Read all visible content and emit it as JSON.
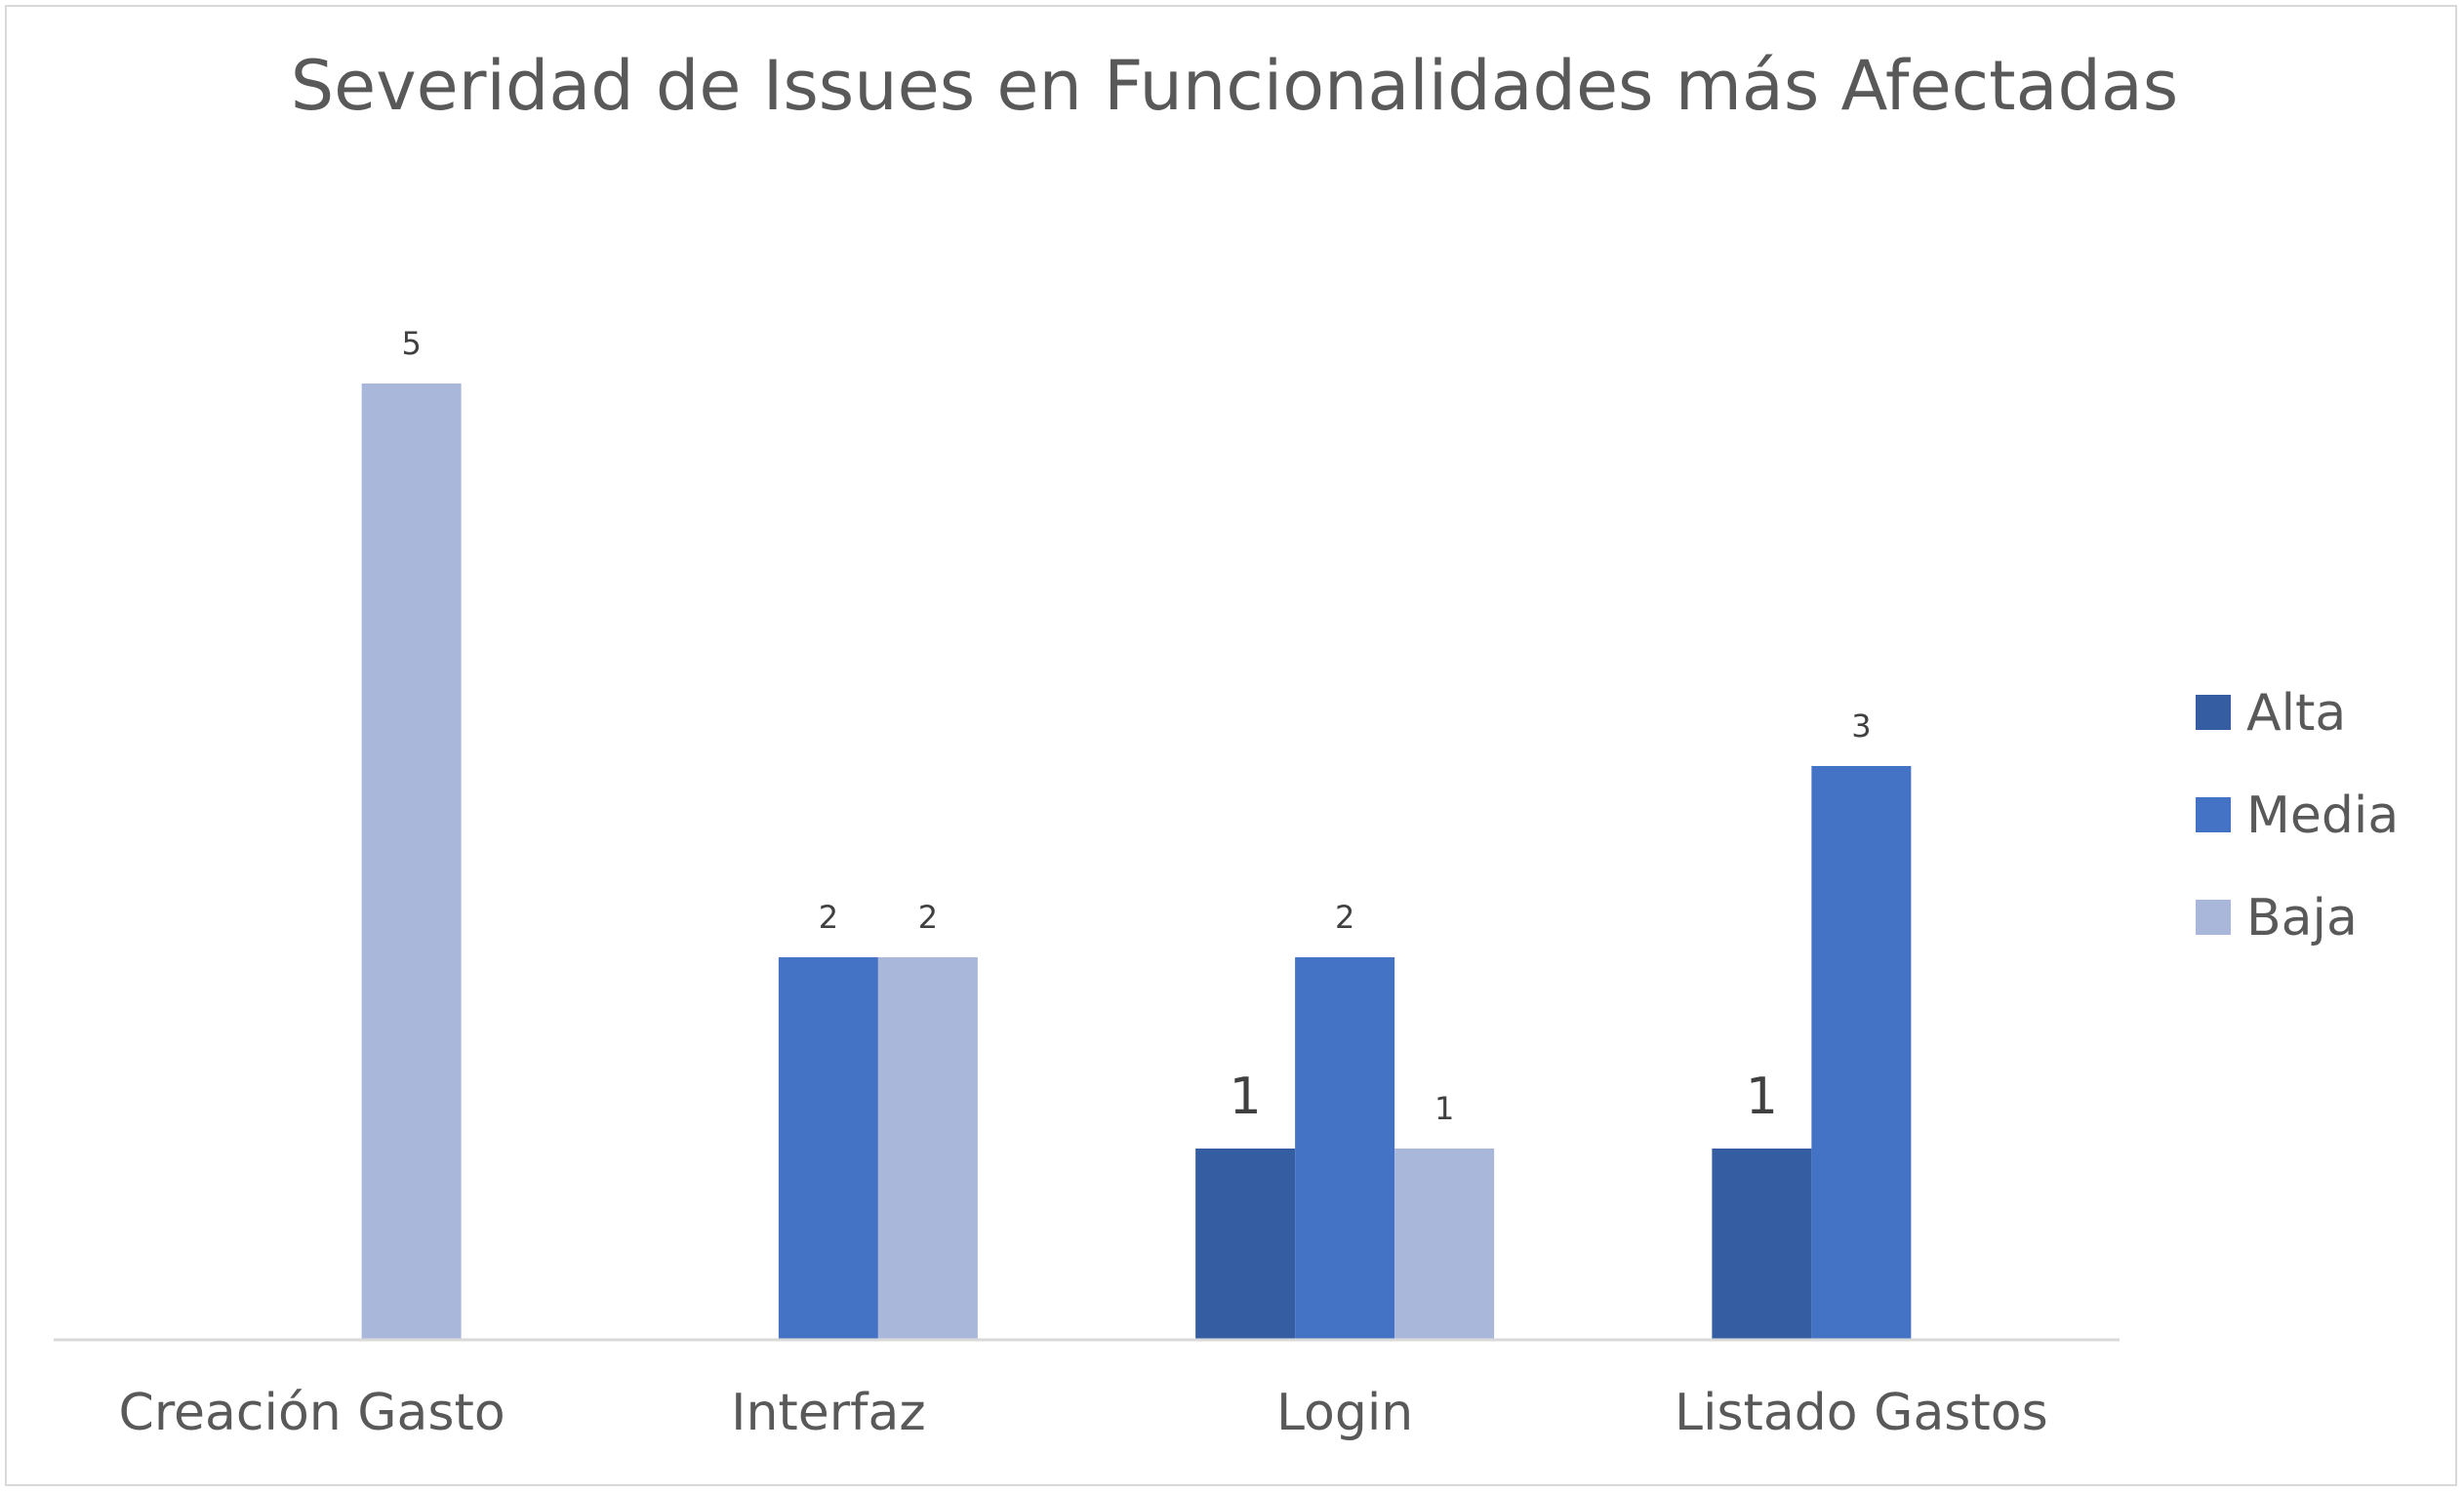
{
  "chart_data": {
    "type": "bar",
    "title": "Severidad de Issues en Funcionalidades más Afectadas",
    "xlabel": "",
    "ylabel": "",
    "categories": [
      "Creación Gasto",
      "Interfaz",
      "Login",
      "Listado Gastos"
    ],
    "series": [
      {
        "name": "Alta",
        "color": "#345ea1",
        "values": [
          null,
          null,
          1,
          1
        ]
      },
      {
        "name": "Media",
        "color": "#4472c4",
        "values": [
          null,
          2,
          2,
          3
        ]
      },
      {
        "name": "Baja",
        "color": "#a9b7db",
        "values": [
          5,
          2,
          1,
          null
        ]
      }
    ],
    "ylim": [
      0,
      5.8
    ],
    "grid": false,
    "legend": "right",
    "axis_color": "#d9d9d9",
    "text_color": "#595959",
    "label_color": "#404040"
  }
}
